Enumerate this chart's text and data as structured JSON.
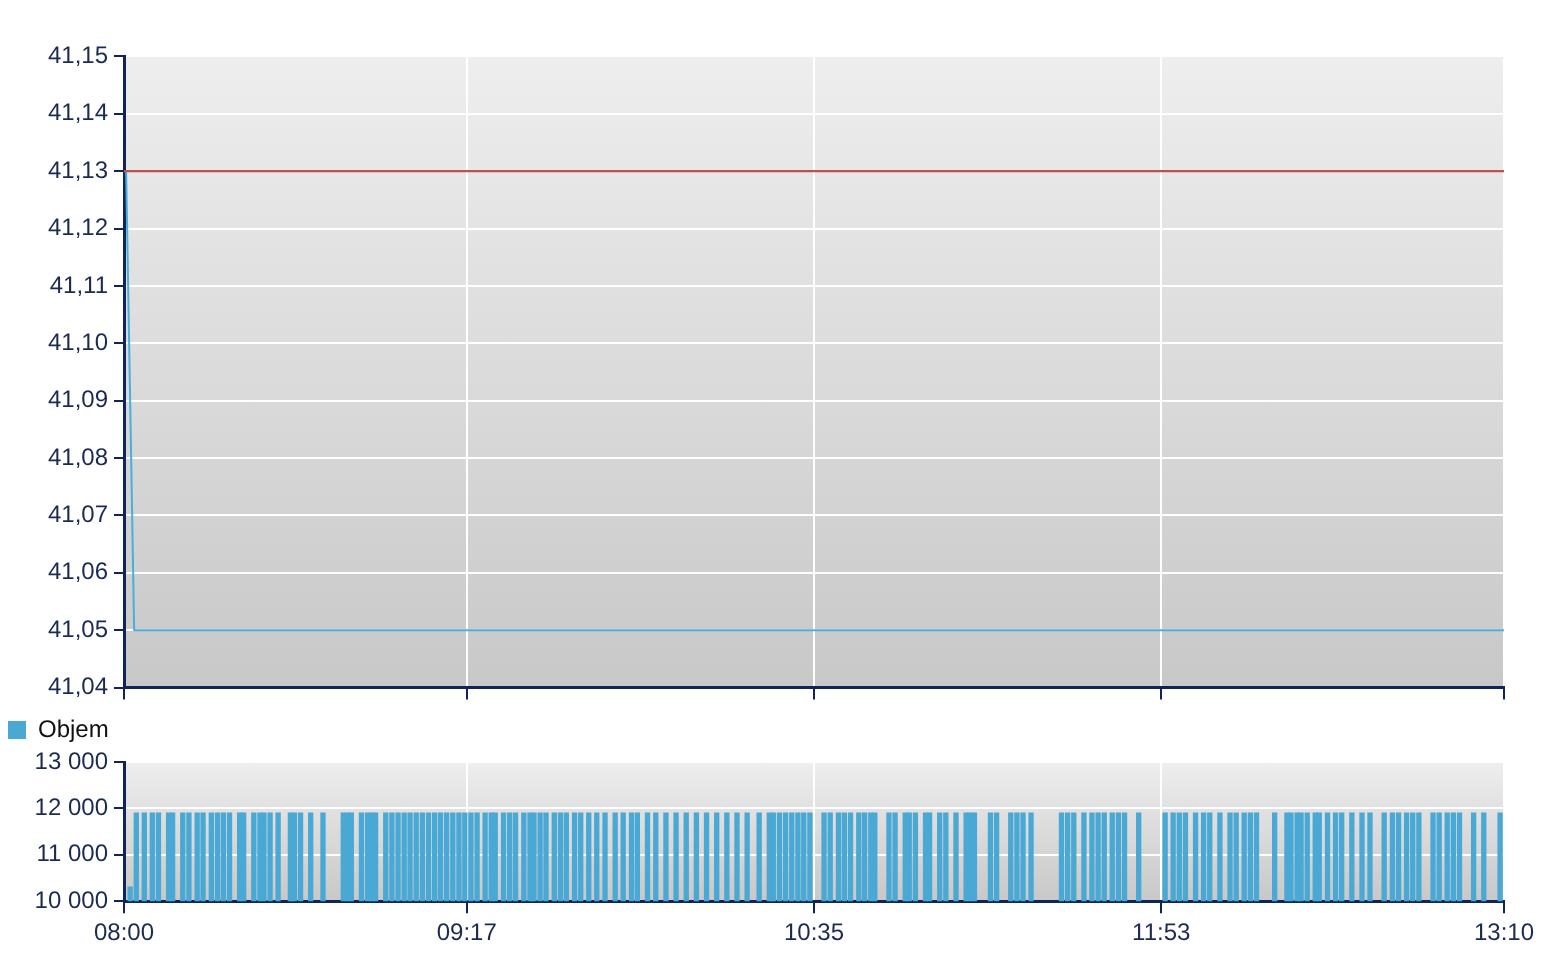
{
  "chart_data": [
    {
      "type": "line",
      "x": [
        8,
        8.008,
        8.038,
        13.1667
      ],
      "series": [
        {
          "color": "#4aaedc",
          "values": [
            41.13,
            41.13,
            41.05,
            41.05
          ]
        }
      ],
      "marker": "none",
      "xlim": [
        8,
        13.1667
      ],
      "xticks": [
        {
          "value": 8,
          "label": null
        },
        {
          "value": 9.2833,
          "label": null
        },
        {
          "value": 10.5833,
          "label": null
        },
        {
          "value": 11.8833,
          "label": null
        },
        {
          "value": 13.1667,
          "label": null
        }
      ],
      "ylim": [
        41.04,
        41.15
      ],
      "yticks": [
        {
          "value": 41.04,
          "label": "41,04"
        },
        {
          "value": 41.05,
          "label": "41,05"
        },
        {
          "value": 41.06,
          "label": "41,06"
        },
        {
          "value": 41.07,
          "label": "41,07"
        },
        {
          "value": 41.08,
          "label": "41,08"
        },
        {
          "value": 41.09,
          "label": "41,09"
        },
        {
          "value": 41.1,
          "label": "41,10"
        },
        {
          "value": 41.11,
          "label": "41,11"
        },
        {
          "value": 41.12,
          "label": "41,12"
        },
        {
          "value": 41.13,
          "label": "41,13"
        },
        {
          "value": 41.14,
          "label": "41,14"
        },
        {
          "value": 41.15,
          "label": "41,15"
        }
      ],
      "ref_lines": [
        {
          "axis": "y",
          "value": 41.13,
          "color": "#c05050"
        }
      ],
      "grid": true,
      "tick_labels": "y"
    },
    {
      "type": "bar",
      "x": [
        8.023,
        8.046,
        8.076,
        8.106,
        8.129,
        8.167,
        8.182,
        8.22,
        8.243,
        8.274,
        8.296,
        8.327,
        8.35,
        8.372,
        8.395,
        8.433,
        8.448,
        8.486,
        8.509,
        8.524,
        8.547,
        8.577,
        8.623,
        8.638,
        8.661,
        8.699,
        8.745,
        8.821,
        8.836,
        8.851,
        8.889,
        8.912,
        8.927,
        8.942,
        8.98,
        9.003,
        9.026,
        9.049,
        9.071,
        9.094,
        9.117,
        9.14,
        9.163,
        9.185,
        9.208,
        9.231,
        9.254,
        9.276,
        9.299,
        9.322,
        9.352,
        9.375,
        9.39,
        9.421,
        9.444,
        9.466,
        9.497,
        9.52,
        9.535,
        9.558,
        9.58,
        9.611,
        9.634,
        9.656,
        9.687,
        9.71,
        9.74,
        9.77,
        9.801,
        9.839,
        9.869,
        9.9,
        9.922,
        9.96,
        9.991,
        10.029,
        10.067,
        10.105,
        10.143,
        10.181,
        10.219,
        10.257,
        10.295,
        10.333,
        10.378,
        10.416,
        10.431,
        10.454,
        10.477,
        10.5,
        10.523,
        10.545,
        10.568,
        10.621,
        10.644,
        10.675,
        10.697,
        10.72,
        10.751,
        10.773,
        10.796,
        10.811,
        10.864,
        10.887,
        10.925,
        10.94,
        10.963,
        11.001,
        11.016,
        11.054,
        11.077,
        11.115,
        11.153,
        11.168,
        11.184,
        11.244,
        11.267,
        11.32,
        11.343,
        11.366,
        11.396,
        11.51,
        11.533,
        11.556,
        11.594,
        11.624,
        11.647,
        11.67,
        11.7,
        11.723,
        11.746,
        11.799,
        11.898,
        11.928,
        11.951,
        11.974,
        12.012,
        12.042,
        12.065,
        12.103,
        12.141,
        12.164,
        12.194,
        12.217,
        12.24,
        12.308,
        12.354,
        12.369,
        12.392,
        12.407,
        12.43,
        12.46,
        12.475,
        12.506,
        12.536,
        12.559,
        12.597,
        12.635,
        12.665,
        12.718,
        12.749,
        12.772,
        12.802,
        12.825,
        12.848,
        12.901,
        12.924,
        12.954,
        12.977,
        13,
        13.053,
        13.091,
        13.152
      ],
      "series": [
        {
          "name": "Objem",
          "color": "#4aa8d4",
          "values": [
            10300,
            11900,
            11900,
            11900,
            11900,
            11900,
            11900,
            11900,
            11900,
            11900,
            11900,
            11900,
            11900,
            11900,
            11900,
            11900,
            11900,
            11900,
            11900,
            11900,
            11900,
            11900,
            11900,
            11900,
            11900,
            11900,
            11900,
            11900,
            11900,
            11900,
            11900,
            11900,
            11900,
            11900,
            11900,
            11900,
            11900,
            11900,
            11900,
            11900,
            11900,
            11900,
            11900,
            11900,
            11900,
            11900,
            11900,
            11900,
            11900,
            11900,
            11900,
            11900,
            11900,
            11900,
            11900,
            11900,
            11900,
            11900,
            11900,
            11900,
            11900,
            11900,
            11900,
            11900,
            11900,
            11900,
            11900,
            11900,
            11900,
            11900,
            11900,
            11900,
            11900,
            11900,
            11900,
            11900,
            11900,
            11900,
            11900,
            11900,
            11900,
            11900,
            11900,
            11900,
            11900,
            11900,
            11900,
            11900,
            11900,
            11900,
            11900,
            11900,
            11900,
            11900,
            11900,
            11900,
            11900,
            11900,
            11900,
            11900,
            11900,
            11900,
            11900,
            11900,
            11900,
            11900,
            11900,
            11900,
            11900,
            11900,
            11900,
            11900,
            11900,
            11900,
            11900,
            11900,
            11900,
            11900,
            11900,
            11900,
            11900,
            11900,
            11900,
            11900,
            11900,
            11900,
            11900,
            11900,
            11900,
            11900,
            11900,
            11900,
            11900,
            11900,
            11900,
            11900,
            11900,
            11900,
            11900,
            11900,
            11900,
            11900,
            11900,
            11900,
            11900,
            11900,
            11900,
            11900,
            11900,
            11900,
            11900,
            11900,
            11900,
            11900,
            11900,
            11900,
            11900,
            11900,
            11900,
            11900,
            11900,
            11900,
            11900,
            11900,
            11900,
            11900,
            11900,
            11900,
            11900,
            11900,
            11900,
            11900,
            11900
          ]
        }
      ],
      "xlim": [
        8,
        13.1667
      ],
      "xticks": [
        {
          "value": 8,
          "label": "08:00"
        },
        {
          "value": 9.2833,
          "label": "09:17"
        },
        {
          "value": 10.5833,
          "label": "10:35"
        },
        {
          "value": 11.8833,
          "label": "11:53"
        },
        {
          "value": 13.1667,
          "label": "13:10"
        }
      ],
      "ylim": [
        10000,
        13000
      ],
      "yticks": [
        {
          "value": 10000,
          "label": "10 000"
        },
        {
          "value": 11000,
          "label": "11 000"
        },
        {
          "value": 12000,
          "label": "12 000"
        },
        {
          "value": 13000,
          "label": "13 000"
        }
      ],
      "grid": true,
      "legend": "top left"
    }
  ]
}
